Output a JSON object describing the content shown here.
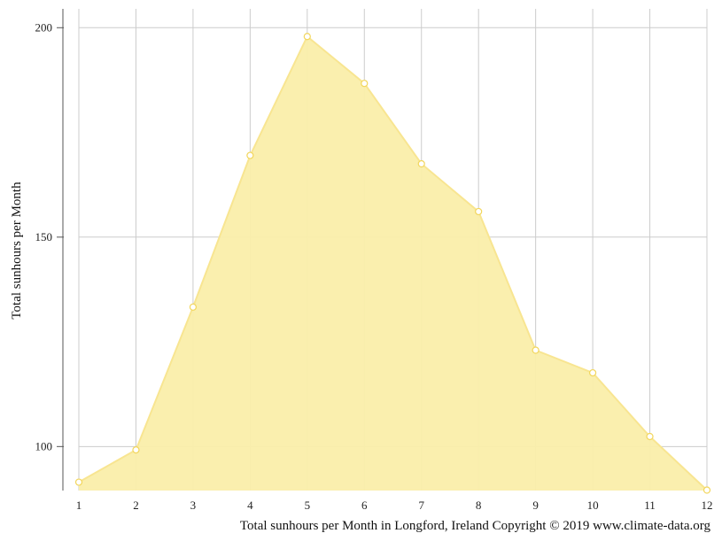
{
  "chart_data": {
    "type": "area",
    "title": "",
    "xlabel": "",
    "ylabel": "Total sunhours per Month",
    "caption": "Total sunhours per Month in Longford, Ireland Copyright © 2019 www.climate-data.org",
    "x": [
      1,
      2,
      3,
      4,
      5,
      6,
      7,
      8,
      9,
      10,
      11,
      12
    ],
    "x_tick_labels": [
      "1",
      "2",
      "3",
      "4",
      "5",
      "6",
      "7",
      "8",
      "9",
      "10",
      "11",
      "12"
    ],
    "y_ticks": [
      100,
      150,
      200
    ],
    "y_tick_labels": [
      "100",
      "150",
      "200"
    ],
    "ylim": [
      89.5,
      204.5
    ],
    "xlim": [
      1,
      12
    ],
    "grid": true,
    "legend": "none",
    "series": [
      {
        "values": [
          91.5,
          99.2,
          133.3,
          169.5,
          197.9,
          186.7,
          167.5,
          156.1,
          123.0,
          117.6,
          102.4,
          89.6
        ]
      }
    ],
    "colors": {
      "fill": "#faeeaa",
      "line": "#f8e591",
      "marker_fill": "#ffffff",
      "marker_stroke": "#f2d65c",
      "grid": "#cccccc",
      "axis": "#555555"
    }
  }
}
